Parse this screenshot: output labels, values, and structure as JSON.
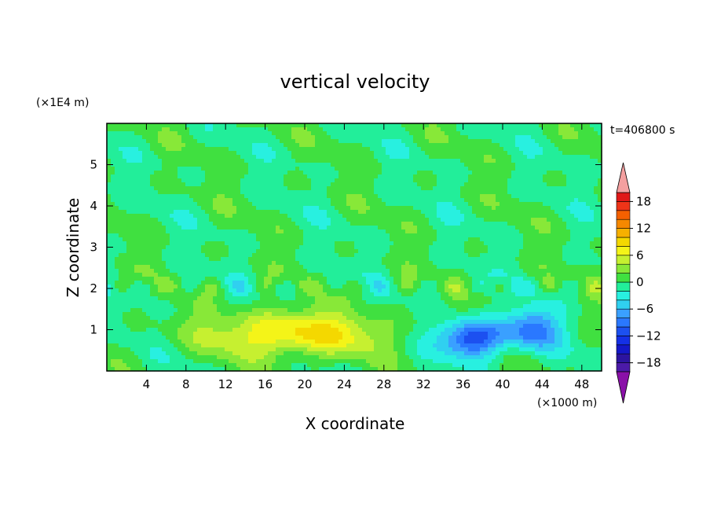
{
  "chart_data": {
    "type": "heatmap",
    "title": "vertical velocity",
    "xlabel": "X coordinate",
    "ylabel": "Z coordinate",
    "x_unit": "(×1000 m)",
    "y_unit": "(×1E4 m)",
    "time_label": "t=406800 s",
    "xlim": [
      0,
      50
    ],
    "ylim": [
      0,
      6
    ],
    "x_ticks": [
      4,
      8,
      12,
      16,
      20,
      24,
      28,
      32,
      36,
      40,
      44,
      48
    ],
    "y_ticks": [
      1,
      2,
      3,
      4,
      5
    ],
    "colorbar": {
      "min": -20,
      "max": 20,
      "ticks": [
        18,
        12,
        6,
        0,
        -6,
        -12,
        -18
      ],
      "levels": [
        {
          "from": -20,
          "to": -18,
          "color": "#4b1aa8"
        },
        {
          "from": -18,
          "to": -16,
          "color": "#2c14a0"
        },
        {
          "from": -16,
          "to": -14,
          "color": "#1418c8"
        },
        {
          "from": -14,
          "to": -12,
          "color": "#1430e6"
        },
        {
          "from": -12,
          "to": -10,
          "color": "#1c50f0"
        },
        {
          "from": -10,
          "to": -8,
          "color": "#2a78ff"
        },
        {
          "from": -8,
          "to": -6,
          "color": "#3aa0ff"
        },
        {
          "from": -6,
          "to": -4,
          "color": "#30d0f0"
        },
        {
          "from": -4,
          "to": -2,
          "color": "#28f0e0"
        },
        {
          "from": -2,
          "to": 0,
          "color": "#22ee9a"
        },
        {
          "from": 0,
          "to": 2,
          "color": "#40e040"
        },
        {
          "from": 2,
          "to": 4,
          "color": "#88e838"
        },
        {
          "from": 4,
          "to": 6,
          "color": "#c6f030"
        },
        {
          "from": 6,
          "to": 8,
          "color": "#f4f418"
        },
        {
          "from": 8,
          "to": 10,
          "color": "#f4d800"
        },
        {
          "from": 10,
          "to": 12,
          "color": "#f6b000"
        },
        {
          "from": 12,
          "to": 14,
          "color": "#f68800"
        },
        {
          "from": 14,
          "to": 16,
          "color": "#f46000"
        },
        {
          "from": 16,
          "to": 18,
          "color": "#ee3418"
        },
        {
          "from": 18,
          "to": 20,
          "color": "#e01818"
        }
      ],
      "under_color": "#8a10a8",
      "over_color": "#f4a0a0"
    },
    "features": [
      {
        "kind": "updraft",
        "x": 19,
        "z": 0.9,
        "peak": 9,
        "sx": 8.5,
        "sz": 0.55
      },
      {
        "kind": "downdraft",
        "x": 37,
        "z": 0.8,
        "peak": -13,
        "sx": 3.2,
        "sz": 0.45
      },
      {
        "kind": "downdraft",
        "x": 43,
        "z": 1.0,
        "peak": -9,
        "sx": 2.6,
        "sz": 0.5
      }
    ]
  }
}
